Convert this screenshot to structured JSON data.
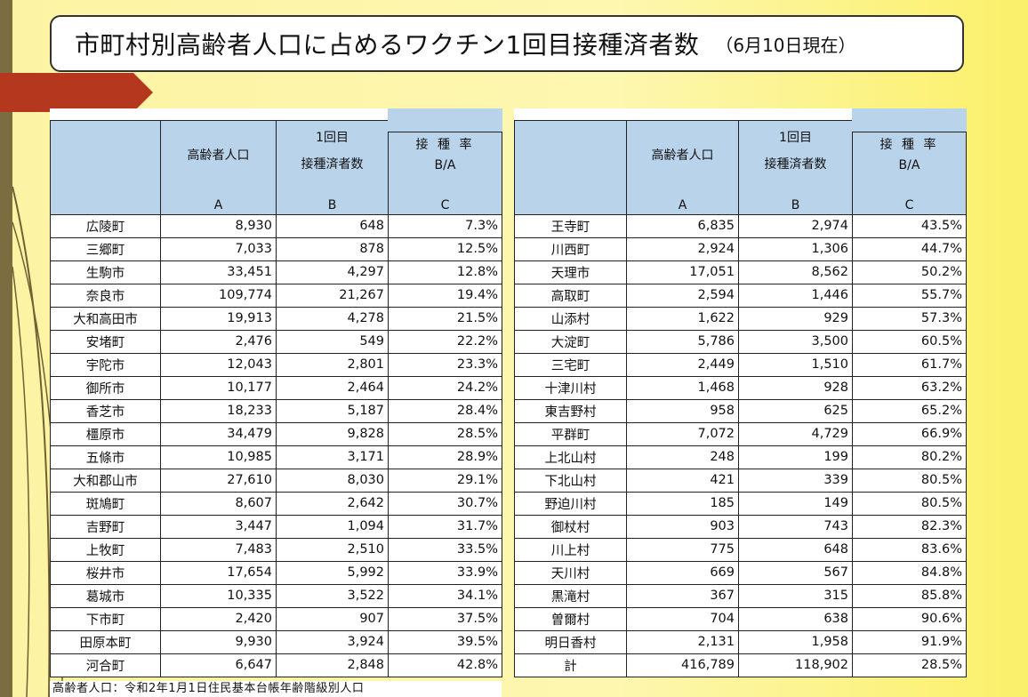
{
  "title": {
    "main": "市町村別高齢者人口に占めるワクチン1回目接種済者数",
    "sub": "（6月10日現在）"
  },
  "headers": {
    "pop": "高齢者人口",
    "dose_line1": "1回目",
    "dose_line2": "接種済者数",
    "rate_line1": "接 種 率",
    "rate_line2": "B/A",
    "col_a": "A",
    "col_b": "B",
    "col_c": "C"
  },
  "left_rows": [
    {
      "name": "広陵町",
      "a": "8,930",
      "b": "648",
      "c": "7.3%"
    },
    {
      "name": "三郷町",
      "a": "7,033",
      "b": "878",
      "c": "12.5%"
    },
    {
      "name": "生駒市",
      "a": "33,451",
      "b": "4,297",
      "c": "12.8%"
    },
    {
      "name": "奈良市",
      "a": "109,774",
      "b": "21,267",
      "c": "19.4%"
    },
    {
      "name": "大和高田市",
      "a": "19,913",
      "b": "4,278",
      "c": "21.5%"
    },
    {
      "name": "安堵町",
      "a": "2,476",
      "b": "549",
      "c": "22.2%"
    },
    {
      "name": "宇陀市",
      "a": "12,043",
      "b": "2,801",
      "c": "23.3%"
    },
    {
      "name": "御所市",
      "a": "10,177",
      "b": "2,464",
      "c": "24.2%"
    },
    {
      "name": "香芝市",
      "a": "18,233",
      "b": "5,187",
      "c": "28.4%"
    },
    {
      "name": "橿原市",
      "a": "34,479",
      "b": "9,828",
      "c": "28.5%"
    },
    {
      "name": "五條市",
      "a": "10,985",
      "b": "3,171",
      "c": "28.9%"
    },
    {
      "name": "大和郡山市",
      "a": "27,610",
      "b": "8,030",
      "c": "29.1%"
    },
    {
      "name": "斑鳩町",
      "a": "8,607",
      "b": "2,642",
      "c": "30.7%"
    },
    {
      "name": "吉野町",
      "a": "3,447",
      "b": "1,094",
      "c": "31.7%"
    },
    {
      "name": "上牧町",
      "a": "7,483",
      "b": "2,510",
      "c": "33.5%"
    },
    {
      "name": "桜井市",
      "a": "17,654",
      "b": "5,992",
      "c": "33.9%"
    },
    {
      "name": "葛城市",
      "a": "10,335",
      "b": "3,522",
      "c": "34.1%"
    },
    {
      "name": "下市町",
      "a": "2,420",
      "b": "907",
      "c": "37.5%"
    },
    {
      "name": "田原本町",
      "a": "9,930",
      "b": "3,924",
      "c": "39.5%"
    },
    {
      "name": "河合町",
      "a": "6,647",
      "b": "2,848",
      "c": "42.8%"
    }
  ],
  "right_rows": [
    {
      "name": "王寺町",
      "a": "6,835",
      "b": "2,974",
      "c": "43.5%"
    },
    {
      "name": "川西町",
      "a": "2,924",
      "b": "1,306",
      "c": "44.7%"
    },
    {
      "name": "天理市",
      "a": "17,051",
      "b": "8,562",
      "c": "50.2%"
    },
    {
      "name": "高取町",
      "a": "2,594",
      "b": "1,446",
      "c": "55.7%"
    },
    {
      "name": "山添村",
      "a": "1,622",
      "b": "929",
      "c": "57.3%"
    },
    {
      "name": "大淀町",
      "a": "5,786",
      "b": "3,500",
      "c": "60.5%"
    },
    {
      "name": "三宅町",
      "a": "2,449",
      "b": "1,510",
      "c": "61.7%"
    },
    {
      "name": "十津川村",
      "a": "1,468",
      "b": "928",
      "c": "63.2%"
    },
    {
      "name": "東吉野村",
      "a": "958",
      "b": "625",
      "c": "65.2%"
    },
    {
      "name": "平群町",
      "a": "7,072",
      "b": "4,729",
      "c": "66.9%"
    },
    {
      "name": "上北山村",
      "a": "248",
      "b": "199",
      "c": "80.2%"
    },
    {
      "name": "下北山村",
      "a": "421",
      "b": "339",
      "c": "80.5%"
    },
    {
      "name": "野迫川村",
      "a": "185",
      "b": "149",
      "c": "80.5%"
    },
    {
      "name": "御杖村",
      "a": "903",
      "b": "743",
      "c": "82.3%"
    },
    {
      "name": "川上村",
      "a": "775",
      "b": "648",
      "c": "83.6%"
    },
    {
      "name": "天川村",
      "a": "669",
      "b": "567",
      "c": "84.8%"
    },
    {
      "name": "黒滝村",
      "a": "367",
      "b": "315",
      "c": "85.8%"
    },
    {
      "name": "曽爾村",
      "a": "704",
      "b": "638",
      "c": "90.6%"
    },
    {
      "name": "明日香村",
      "a": "2,131",
      "b": "1,958",
      "c": "91.9%"
    },
    {
      "name": "計",
      "a": "416,789",
      "b": "118,902",
      "c": "28.5%"
    }
  ],
  "footnote": "高齢者人口：令和2年1月1日住民基本台帳年齢階級別人口",
  "colors": {
    "header_bg": "#b9d3ea",
    "accent_arrow": "#b5381e",
    "background": "#fdf3a3"
  }
}
